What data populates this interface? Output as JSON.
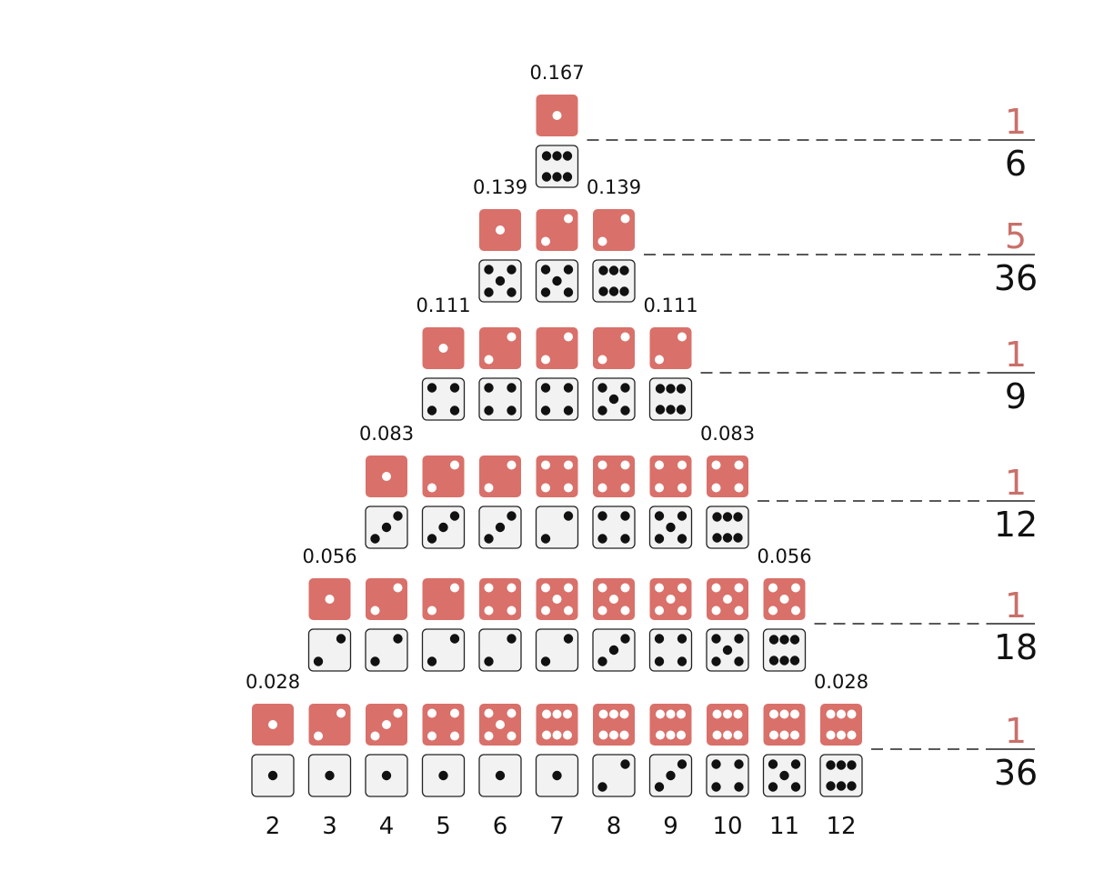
{
  "colors": {
    "red_die": "#d9706a",
    "white_die": "#f2f2f2",
    "white_die_border": "#222222",
    "pip_light": "#ffffff",
    "pip_dark": "#111111",
    "numerator": "#c9706a",
    "text": "#111111",
    "dash": "#222222"
  },
  "sums": [
    "2",
    "3",
    "4",
    "5",
    "6",
    "7",
    "8",
    "9",
    "10",
    "11",
    "12"
  ],
  "rows": [
    {
      "pairs": [
        [
          1,
          6
        ]
      ],
      "prob_left": "0.167",
      "prob_right": "",
      "fraction": {
        "numerator": "1",
        "denominator": "6"
      }
    },
    {
      "pairs": [
        [
          1,
          5
        ],
        [
          2,
          5
        ],
        [
          2,
          6
        ]
      ],
      "prob_left": "0.139",
      "prob_right": "0.139",
      "fraction": {
        "numerator": "5",
        "denominator": "36"
      }
    },
    {
      "pairs": [
        [
          1,
          4
        ],
        [
          2,
          4
        ],
        [
          2,
          4
        ],
        [
          2,
          5
        ],
        [
          2,
          6
        ]
      ],
      "prob_left": "0.111",
      "prob_right": "0.111",
      "fraction": {
        "numerator": "1",
        "denominator": "9"
      }
    },
    {
      "pairs": [
        [
          1,
          3
        ],
        [
          2,
          3
        ],
        [
          2,
          3
        ],
        [
          4,
          2
        ],
        [
          4,
          4
        ],
        [
          4,
          5
        ],
        [
          4,
          6
        ]
      ],
      "prob_left": "0.083",
      "prob_right": "0.083",
      "fraction": {
        "numerator": "1",
        "denominator": "12"
      }
    },
    {
      "pairs": [
        [
          1,
          2
        ],
        [
          2,
          2
        ],
        [
          2,
          2
        ],
        [
          4,
          2
        ],
        [
          5,
          2
        ],
        [
          5,
          3
        ],
        [
          5,
          4
        ],
        [
          5,
          5
        ],
        [
          5,
          6
        ]
      ],
      "prob_left": "0.056",
      "prob_right": "0.056",
      "fraction": {
        "numerator": "1",
        "denominator": "18"
      }
    },
    {
      "pairs": [
        [
          1,
          1
        ],
        [
          2,
          1
        ],
        [
          3,
          1
        ],
        [
          4,
          1
        ],
        [
          5,
          1
        ],
        [
          6,
          1
        ],
        [
          6,
          2
        ],
        [
          6,
          3
        ],
        [
          6,
          4
        ],
        [
          6,
          5
        ],
        [
          6,
          6
        ]
      ],
      "prob_left": "0.028",
      "prob_right": "0.028",
      "fraction": {
        "numerator": "1",
        "denominator": "36"
      }
    }
  ]
}
